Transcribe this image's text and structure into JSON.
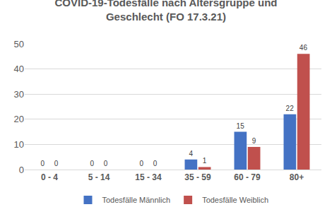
{
  "chart_data": {
    "type": "bar",
    "title": "COVID-19-Todesfälle nach Altersgruppe und\nGeschlecht (FO 17.3.21)",
    "categories": [
      "0 - 4",
      "5 - 14",
      "15 - 34",
      "35 - 59",
      "60 - 79",
      "80+"
    ],
    "series": [
      {
        "name": "Todesfälle Männlich",
        "color": "#4472c4",
        "values": [
          0,
          0,
          0,
          4,
          15,
          22
        ]
      },
      {
        "name": "Todesfälle Weiblich",
        "color": "#c0504d",
        "values": [
          0,
          0,
          0,
          1,
          9,
          46
        ]
      }
    ],
    "ylim": [
      0,
      50
    ],
    "yticks": [
      0,
      10,
      20,
      30,
      40,
      50
    ],
    "grid": true,
    "legend": "bottom",
    "data_labels": true
  }
}
